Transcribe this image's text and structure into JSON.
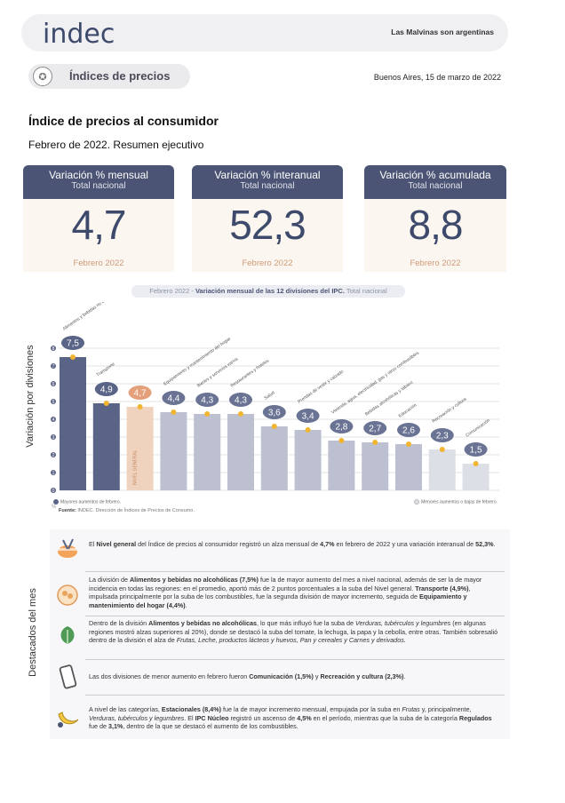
{
  "header": {
    "logo": "indec",
    "tagline": "Las Malvinas son argentinas",
    "section": "Índices de precios",
    "date": "Buenos Aires, 15 de marzo de 2022"
  },
  "title": "Índice de precios al consumidor",
  "subtitle": "Febrero de 2022. Resumen ejecutivo",
  "kpis": [
    {
      "title": "Variación % mensual",
      "sub": "Total nacional",
      "value": "4,7",
      "period": "Febrero 2022"
    },
    {
      "title": "Variación % interanual",
      "sub": "Total nacional",
      "value": "52,3",
      "period": "Febrero 2022"
    },
    {
      "title": "Variación % acumulada",
      "sub": "Total nacional",
      "value": "8,8",
      "period": "Febrero 2022"
    }
  ],
  "chart_caption": {
    "prefix": "Febrero 2022 - ",
    "bold": "Variación mensual de las 12 divisiones del IPC.",
    "suffix": " Total nacional"
  },
  "chart_data": {
    "type": "bar",
    "ylabel": "Variación por divisiones",
    "unit": "%",
    "ylim": [
      0,
      8
    ],
    "yticks": [
      0,
      1,
      2,
      3,
      4,
      5,
      6,
      7,
      8
    ],
    "categories": [
      "Alimentos y bebidas no alcohólicas",
      "Transporte",
      "NIVEL GENERAL",
      "Equipamiento y mantenimiento del hogar",
      "Bienes y servicios varios",
      "Restaurantes y hoteles",
      "Salud",
      "Prendas de vestir y calzado",
      "Vivienda, agua, electricidad, gas y otros combustibles",
      "Bebidas alcohólicas y tabaco",
      "Educación",
      "Recreación y cultura",
      "Comunicación"
    ],
    "values": [
      7.5,
      4.9,
      4.7,
      4.4,
      4.3,
      4.3,
      3.6,
      3.4,
      2.8,
      2.7,
      2.6,
      2.3,
      1.5
    ],
    "labels": [
      "7,5",
      "4,9",
      "4,7",
      "4,4",
      "4,3",
      "4,3",
      "3,6",
      "3,4",
      "2,8",
      "2,7",
      "2,6",
      "2,3",
      "1,5"
    ],
    "groups": [
      "max",
      "max",
      "general",
      "mid",
      "mid",
      "mid",
      "mid",
      "mid",
      "mid",
      "mid",
      "mid",
      "min",
      "min"
    ],
    "legend": [
      "Mayores aumentos de febrero.",
      "Menores aumentos o bajas de febrero."
    ],
    "colors": {
      "max": "#5a6487",
      "general": "#f0d3bf",
      "mid": "#bcc0d0",
      "min": "#dddfe6",
      "dot": "#f2b531",
      "grid": "#e3e3e3"
    }
  },
  "source": {
    "bold": "Fuente:",
    "text": " INDEC. Dirección de Índices de Precios de Consumo."
  },
  "highlights": {
    "side_label": "Destacados del mes",
    "items": [
      {
        "icon": "bowl-icon",
        "html": "El <b>Nivel general</b> del Índice de precios al consumidor registró un alza mensual de <b>4,7%</b> en febrero de 2022 y una variación interanual de <b>52,3%</b>."
      },
      {
        "icon": "food-icon",
        "html": "La división de <b>Alimentos y bebidas no alcohólicas (7,5%)</b> fue la de mayor aumento del mes a nivel nacional, además de ser la de mayor incidencia en todas las regiones: en el promedio, aportó más de 2 puntos porcentuales a la suba del Nivel general. <b>Transporte (4,9%)</b>, impulsada principalmente por la suba de los combustibles, fue la segunda división de mayor incremento, seguida de <b>Equipamiento y mantenimiento del hogar (4,4%)</b>."
      },
      {
        "icon": "lettuce-icon",
        "html": "Dentro de la división <b>Alimentos y bebidas no alcohólicas</b>, lo que más influyó fue la suba de <i>Verduras, tubérculos y legumbres</i> (en algunas regiones mostró alzas superiores al 20%), donde se destacó la suba del tomate, la lechuga, la papa y la cebolla, entre otras. También sobresalió dentro de la división el alza de <i>Frutas, Leche, productos lácteos y huevos, Pan y cereales y Carnes y derivados.</i>"
      },
      {
        "icon": "phone-icon",
        "html": "Las dos divisiones de menor aumento en febrero fueron <b>Comunicación (1,5%)</b> y <b>Recreación y cultura (2,3%)</b>."
      },
      {
        "icon": "banana-icon",
        "html": "A nivel de las categorías, <b>Estacionales (8,4%)</b> fue la de mayor incremento mensual, empujada por la suba en <i>Frutas</i> y, principalmente, <i>Verduras, tubérculos y legumbres</i>. El <b>IPC Núcleo</b> registró un ascenso de <b>4,5%</b> en el período, mientras que la suba de la categoría <b>Regulados</b> fue de <b>3,1%</b>, dentro de la que se destacó el aumento de los combustibles."
      }
    ]
  }
}
